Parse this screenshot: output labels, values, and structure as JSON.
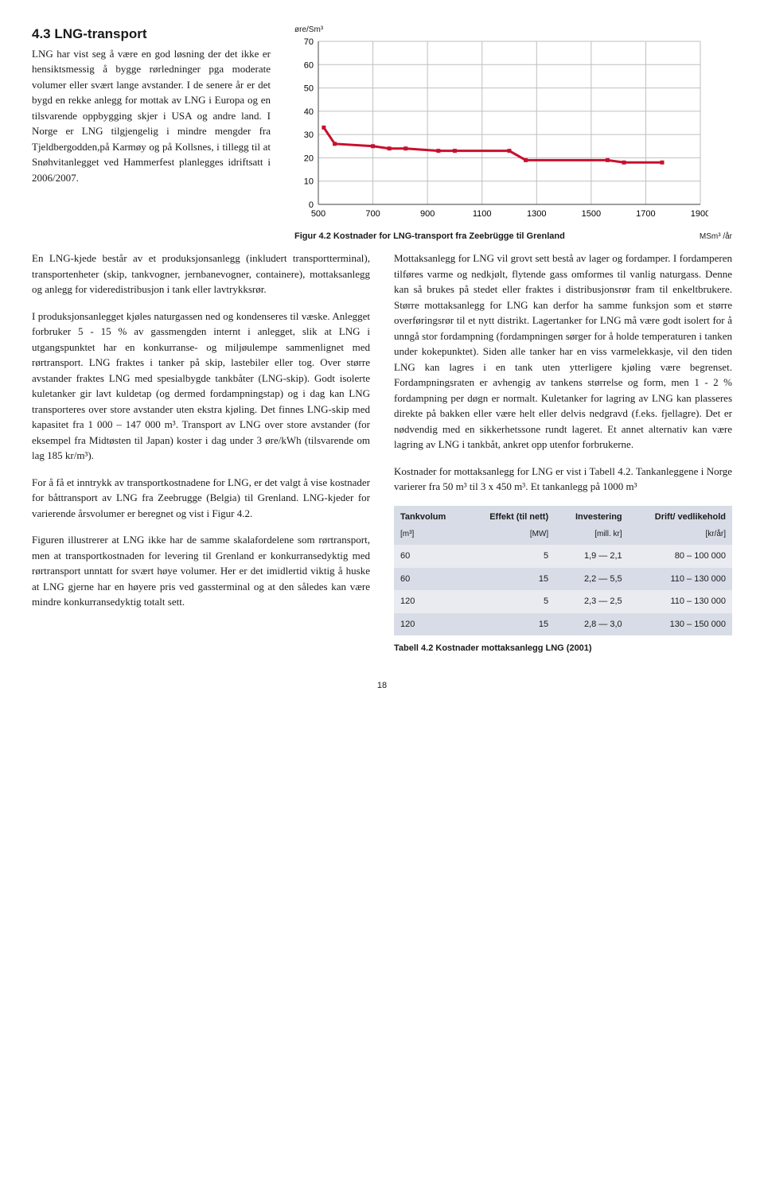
{
  "section": {
    "number": "4.3",
    "title": "LNG-transport"
  },
  "intro": "LNG har vist seg å være en god løsning der det ikke er hensiktsmessig å bygge rørledninger pga moderate volumer eller svært lange avstander. I de senere år er det bygd en rekke anlegg for mottak av LNG i Europa og en tilsvarende oppbygging skjer i USA og andre land. I Norge er LNG tilgjengelig i mindre mengder fra Tjeldbergodden,på Karmøy og på Kollsnes, i tillegg til at Snøhvitanlegget ved Hammerfest planlegges idriftsatt i 2006/2007.",
  "paragraphs": [
    "En LNG-kjede består av et produksjonsanlegg (inkludert transportterminal), transportenheter (skip, tankvogner, jernbanevogner, containere), mottaksanlegg og anlegg for videredistribusjon i tank eller lavtrykksrør.",
    "I produksjonsanlegget kjøles naturgassen ned og kondenseres til væske. Anlegget forbruker 5 - 15 % av gassmengden internt i anlegget, slik at LNG i utgangspunktet har en konkurranse- og miljøulempe sammenlignet med rørtransport. LNG fraktes i tanker på skip, lastebiler eller tog. Over større avstander fraktes LNG med spesialbygde tankbåter (LNG-skip). Godt isolerte kuletanker gir lavt kuldetap (og dermed fordampningstap) og i dag kan LNG transporteres over store avstander uten ekstra kjøling. Det finnes LNG-skip med kapasitet fra 1 000 – 147 000 m³. Transport av LNG over store avstander (for eksempel fra Midtøsten til Japan) koster i dag under 3 øre/kWh (tilsvarende om lag 185 kr/m³).",
    "For å få et inntrykk av transportkostnadene for LNG, er det valgt å vise kostnader for båttransport av LNG fra Zeebrugge (Belgia) til Grenland. LNG-kjeder for varierende årsvolumer er beregnet og vist i Figur 4.2.",
    "Figuren illustrerer at LNG ikke har de samme skalafordelene som rørtransport, men at transportkostnaden for levering til Grenland er konkurransedyktig med rørtransport unntatt for svært høye volumer. Her er det imidlertid viktig å huske at LNG gjerne har en høyere pris ved gassterminal og at den således kan være mindre konkurransedyktig totalt sett.",
    "Mottaksanlegg for LNG vil grovt sett bestå av lager og fordamper. I fordamperen tilføres varme og nedkjølt, flytende gass omformes til vanlig naturgass. Denne kan så brukes på stedet eller fraktes i distribusjonsrør fram til enkeltbrukere. Større mottaksanlegg for LNG kan derfor ha samme funksjon som et større overføringsrør til et nytt distrikt. Lagertanker for LNG må være godt isolert for å unngå stor fordampning (fordampningen sørger for å holde temperaturen i tanken under kokepunktet). Siden alle tanker har en viss varmelekkasje, vil den tiden LNG kan lagres i en tank uten ytterligere kjøling være begrenset. Fordampningsraten er avhengig av tankens størrelse og form, men 1 - 2 % fordampning per døgn er normalt. Kuletanker for lagring av LNG kan plasseres direkte på bakken eller være helt eller delvis nedgravd (f.eks. fjellagre).  Det er nødvendig med en sikkerhetssone rundt lageret. Et annet alternativ kan være lagring av LNG i tankbåt, ankret opp utenfor forbrukerne.",
    "Kostnader for mottaksanlegg for LNG er vist i Tabell 4.2. Tankanleggene i Norge varierer fra 50 m³ til 3 x 450 m³. Et tankanlegg på 1000 m³"
  ],
  "chart": {
    "type": "line",
    "y_unit": "øre/Sm³",
    "x_unit": "MSm³ /år",
    "caption": "Figur 4.2 Kostnader for LNG-transport fra Zeebrügge til Grenland",
    "xlim": [
      500,
      1900
    ],
    "ylim": [
      0,
      70
    ],
    "xticks": [
      500,
      700,
      900,
      1100,
      1300,
      1500,
      1700,
      1900
    ],
    "yticks": [
      0,
      10,
      20,
      30,
      40,
      50,
      60,
      70
    ],
    "grid_color": "#bfbfbf",
    "line_color": "#c8102e",
    "line_width": 3,
    "marker_size": 5,
    "points": [
      {
        "x": 520,
        "y": 33
      },
      {
        "x": 560,
        "y": 26
      },
      {
        "x": 700,
        "y": 25
      },
      {
        "x": 760,
        "y": 24
      },
      {
        "x": 820,
        "y": 24
      },
      {
        "x": 940,
        "y": 23
      },
      {
        "x": 1000,
        "y": 23
      },
      {
        "x": 1200,
        "y": 23
      },
      {
        "x": 1260,
        "y": 19
      },
      {
        "x": 1560,
        "y": 19
      },
      {
        "x": 1620,
        "y": 18
      },
      {
        "x": 1760,
        "y": 18
      }
    ]
  },
  "table": {
    "caption": "Tabell 4.2 Kostnader mottaksanlegg LNG (2001)",
    "headers": [
      "Tankvolum",
      "Effekt (til nett)",
      "Investering",
      "Drift/ vedlikehold"
    ],
    "subheaders": [
      "[m³]",
      "[MW]",
      "[mill. kr]",
      "[kr/år]"
    ],
    "rows": [
      [
        "60",
        "5",
        "1,9 — 2,1",
        "80 – 100 000"
      ],
      [
        "60",
        "15",
        "2,2 — 5,5",
        "110 – 130 000"
      ],
      [
        "120",
        "5",
        "2,3 — 2,5",
        "110 – 130 000"
      ],
      [
        "120",
        "15",
        "2,8 — 3,0",
        "130 – 150 000"
      ]
    ]
  },
  "page_number": "18"
}
